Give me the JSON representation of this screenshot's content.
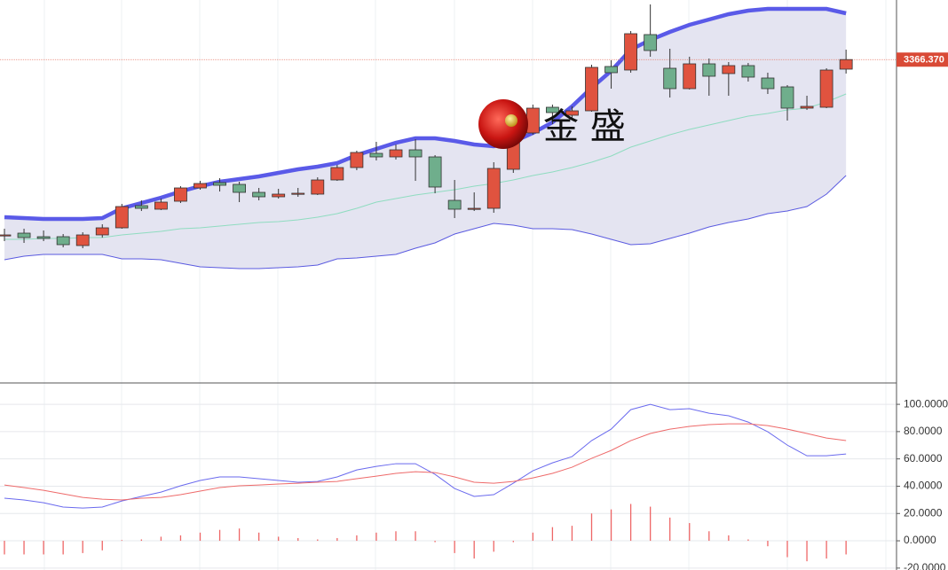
{
  "chart_data": [
    {
      "type": "candlestick",
      "ylim": [
        3185,
        3400
      ],
      "up_color": "#e0533f",
      "down_color": "#6fae8c",
      "open": [
        3267.5,
        3268.5,
        3266.5,
        3266.5,
        3261.5,
        3267.5,
        3271.5,
        3284,
        3282,
        3286.5,
        3294,
        3297,
        3296,
        3291.5,
        3289,
        3290.5,
        3290.5,
        3298.5,
        3305.5,
        3313.5,
        3311.5,
        3315.5,
        3311.5,
        3287,
        3282,
        3282.5,
        3304.5,
        3325,
        3339.5,
        3335,
        3337.5,
        3362.5,
        3360.5,
        3380.5,
        3361.5,
        3350,
        3364,
        3358.5,
        3363,
        3356,
        3351,
        3339,
        3339.5,
        3361
      ],
      "high": [
        3271,
        3271,
        3270,
        3268,
        3269,
        3273.5,
        3285,
        3287,
        3288,
        3295,
        3298,
        3299.5,
        3297.5,
        3294,
        3293.5,
        3294,
        3300,
        3307,
        3315,
        3320,
        3318.5,
        3321.5,
        3312.5,
        3298.5,
        3291.5,
        3308.5,
        3330,
        3341,
        3341,
        3340,
        3363.5,
        3366,
        3382.5,
        3397.5,
        3372.5,
        3368,
        3367,
        3365,
        3364.5,
        3359,
        3352,
        3346,
        3361.5,
        3372
      ],
      "low": [
        3264,
        3263,
        3264,
        3260.5,
        3260,
        3266,
        3271,
        3281,
        3281.5,
        3285.5,
        3293,
        3292,
        3286,
        3287,
        3288,
        3289,
        3290,
        3298,
        3304,
        3309.5,
        3310,
        3298,
        3291,
        3277,
        3281,
        3280,
        3302.5,
        3324,
        3330,
        3333,
        3337,
        3350,
        3359,
        3368,
        3345,
        3349.5,
        3346,
        3346,
        3354,
        3347,
        3332,
        3338,
        3339,
        3358.5
      ],
      "close": [
        3267.5,
        3266,
        3265.5,
        3262,
        3267.5,
        3271.5,
        3283.5,
        3282.5,
        3286,
        3294,
        3296.5,
        3295.5,
        3291.5,
        3289,
        3290.5,
        3291,
        3298.5,
        3305.5,
        3314,
        3311.5,
        3315.5,
        3311.5,
        3294.5,
        3282,
        3282.5,
        3305,
        3325,
        3339,
        3336.5,
        3337.5,
        3362,
        3359,
        3381,
        3371.5,
        3350,
        3364,
        3357,
        3363,
        3356.5,
        3350,
        3339,
        3340,
        3360.5,
        3366.4
      ],
      "overlays": [
        {
          "color": "#5a5ae8",
          "values": [
            3277.5,
            3277,
            3276.5,
            3276.5,
            3276.5,
            3277,
            3282.5,
            3285.5,
            3288.5,
            3292,
            3295,
            3297.5,
            3299,
            3300.5,
            3302.5,
            3304.5,
            3306,
            3308,
            3312.5,
            3316,
            3319.5,
            3322,
            3322,
            3320.5,
            3318.5,
            3317.5,
            3320,
            3325,
            3331,
            3340,
            3350.5,
            3360,
            3372,
            3377.5,
            3382,
            3386,
            3389,
            3392,
            3394,
            3395,
            3395,
            3395,
            3395,
            3392.5
          ]
        },
        {
          "color": "#8fdcc0",
          "values": [
            3265,
            3265,
            3265.5,
            3265.5,
            3266,
            3266,
            3267.5,
            3268.5,
            3269.5,
            3271,
            3271.5,
            3272.5,
            3273.5,
            3274.5,
            3275,
            3276,
            3277.5,
            3279.5,
            3282.5,
            3286,
            3288,
            3290,
            3291.5,
            3293,
            3295,
            3296.5,
            3298.5,
            3301,
            3303,
            3305.5,
            3308.5,
            3312,
            3317,
            3320.5,
            3324,
            3327,
            3329.5,
            3332,
            3334.5,
            3336,
            3338,
            3339,
            3342.5,
            3347
          ]
        },
        {
          "color": "#5a5ae0",
          "values": [
            3253.5,
            3255.5,
            3256.5,
            3256.5,
            3256.5,
            3256.5,
            3254,
            3254,
            3253.5,
            3251.5,
            3249.5,
            3249,
            3248.5,
            3248.5,
            3249,
            3249.5,
            3250.5,
            3254,
            3254.5,
            3255.5,
            3256.5,
            3260,
            3263,
            3268,
            3271,
            3274,
            3273,
            3271,
            3271,
            3270.5,
            3268,
            3265,
            3262,
            3262.5,
            3265.5,
            3268.5,
            3272,
            3274.5,
            3276.5,
            3279.5,
            3281,
            3283.5,
            3290.5,
            3301
          ]
        }
      ],
      "band_fill": "#e4e4f1",
      "last_price": {
        "value": 3366.37,
        "label": "3366.370"
      },
      "watermark": "金 盛"
    },
    {
      "type": "line",
      "ylim": [
        -21.4,
        115
      ],
      "yticks": [
        {
          "value": 100,
          "label": "100.0000"
        },
        {
          "value": 80,
          "label": "80.0000"
        },
        {
          "value": 60,
          "label": "60.0000"
        },
        {
          "value": 40,
          "label": "40.0000"
        },
        {
          "value": 20,
          "label": "20.0000"
        },
        {
          "value": 0,
          "label": "0.0000"
        },
        {
          "value": -20,
          "label": "-20.0000"
        }
      ],
      "grid": true,
      "series": [
        {
          "type": "bar",
          "color": "#ee6666",
          "values": [
            -10,
            -10,
            -10,
            -10,
            -9,
            -7,
            0.5,
            1,
            3,
            4,
            6,
            8,
            9,
            6,
            3,
            2,
            1,
            2,
            4,
            6,
            7,
            7,
            -1,
            -9,
            -13,
            -8,
            -1,
            6,
            10,
            11,
            20,
            23,
            27,
            25,
            17,
            13,
            7,
            4,
            1,
            -4,
            -12,
            -15,
            -13,
            -10
          ]
        },
        {
          "type": "line",
          "color": "#6a6aee",
          "values": [
            31.2,
            29.9,
            27.9,
            24.7,
            24.0,
            24.7,
            29.2,
            32.5,
            35.7,
            40.3,
            44.2,
            46.8,
            46.8,
            45.5,
            44.2,
            42.9,
            43.5,
            46.8,
            51.9,
            54.5,
            56.5,
            56.5,
            48.7,
            38.3,
            32.5,
            33.8,
            42.2,
            51.3,
            57.1,
            61.7,
            73.4,
            81.8,
            96.1,
            100,
            96.1,
            96.8,
            93.5,
            91.6,
            87.0,
            79.9,
            70.1,
            62.3,
            62.3,
            63.6
          ]
        },
        {
          "type": "line",
          "color": "#ee6a6a",
          "values": [
            40.9,
            39.0,
            37.0,
            34.4,
            31.8,
            30.5,
            29.9,
            31.2,
            31.8,
            33.8,
            36.4,
            39.0,
            40.3,
            40.9,
            41.6,
            42.2,
            42.9,
            43.5,
            45.5,
            47.4,
            49.4,
            50.6,
            50.0,
            46.8,
            42.9,
            42.2,
            43.5,
            46.1,
            49.4,
            53.9,
            60.4,
            66.2,
            73.4,
            78.6,
            81.8,
            83.8,
            85.1,
            85.7,
            85.7,
            84.4,
            81.8,
            78.6,
            75.3,
            73.4
          ]
        }
      ]
    }
  ]
}
